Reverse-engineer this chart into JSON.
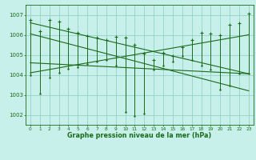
{
  "title": "Graphe pression niveau de la mer (hPa)",
  "bg_color": "#c8f0ea",
  "line_color": "#1a6b1a",
  "grid_color": "#8cccc4",
  "x_labels": [
    "0",
    "1",
    "2",
    "3",
    "4",
    "5",
    "6",
    "7",
    "8",
    "9",
    "10",
    "11",
    "12",
    "13",
    "14",
    "15",
    "16",
    "17",
    "18",
    "19",
    "20",
    "21",
    "22",
    "23"
  ],
  "ylim": [
    1001.5,
    1007.5
  ],
  "yticks": [
    1002,
    1003,
    1004,
    1005,
    1006,
    1007
  ],
  "pressure_max": [
    1006.75,
    1006.2,
    1006.75,
    1006.65,
    1006.3,
    1006.1,
    1005.95,
    1005.85,
    1005.75,
    1005.9,
    1005.85,
    1005.5,
    1005.05,
    1004.75,
    1005.1,
    1004.95,
    1005.4,
    1005.75,
    1006.1,
    1006.05,
    1006.0,
    1006.5,
    1006.6,
    1007.05
  ],
  "pressure_min": [
    1004.0,
    1003.05,
    1003.85,
    1004.1,
    1004.3,
    1004.4,
    1004.55,
    1004.65,
    1004.75,
    1004.45,
    1002.15,
    1001.95,
    1002.05,
    1004.25,
    1004.45,
    1004.65,
    1004.95,
    1004.75,
    1004.45,
    1004.25,
    1003.25,
    1003.45,
    1004.05,
    1004.05
  ],
  "trend_lines": [
    [
      1006.6,
      1004.05
    ],
    [
      1004.1,
      1006.0
    ],
    [
      1006.05,
      1003.2
    ],
    [
      1004.6,
      1004.05
    ]
  ],
  "figsize": [
    3.2,
    2.0
  ],
  "dpi": 100
}
